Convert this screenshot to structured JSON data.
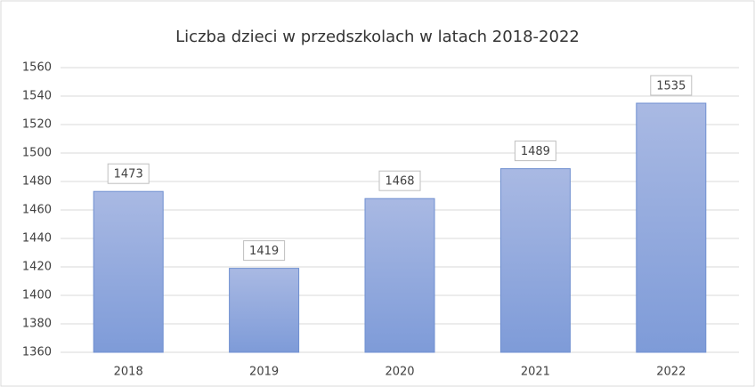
{
  "chart_data": {
    "type": "bar",
    "title": "Liczba dzieci w przedszkolach w latach 2018-2022",
    "categories": [
      "2018",
      "2019",
      "2020",
      "2021",
      "2022"
    ],
    "values": [
      1473,
      1419,
      1468,
      1489,
      1535
    ],
    "color": "#8da5dc",
    "ylim": [
      1360,
      1560
    ],
    "yticks": [
      1360,
      1380,
      1400,
      1420,
      1440,
      1460,
      1480,
      1500,
      1520,
      1540,
      1560
    ],
    "grid": true
  }
}
